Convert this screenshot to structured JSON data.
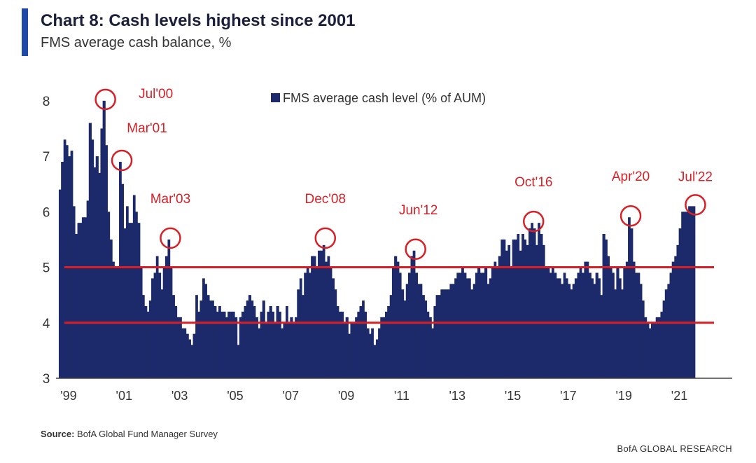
{
  "header": {
    "title": "Chart 8: Cash levels highest since 2001",
    "subtitle": "FMS average cash balance, %"
  },
  "footer": {
    "source_label": "Source:",
    "source_text": "BofA Global Fund Manager Survey",
    "brand": "BofA GLOBAL RESEARCH"
  },
  "colors": {
    "bars": "#1c2a6b",
    "reference_lines": "#d91f26",
    "annotations": "#d91f26",
    "accent": "#1f4aa8"
  },
  "chart_data": {
    "type": "bar",
    "title": "Chart 8: Cash levels highest since 2001",
    "subtitle": "FMS average cash balance, %",
    "legend": {
      "label": "FMS average cash level (% of AUM)",
      "position": "top-center"
    },
    "x_tick_labels": [
      "'99",
      "'01",
      "'03",
      "'05",
      "'07",
      "'09",
      "'11",
      "'13",
      "'15",
      "'17",
      "'19",
      "'21"
    ],
    "x_tick_years": [
      1999,
      2001,
      2003,
      2005,
      2007,
      2009,
      2011,
      2013,
      2015,
      2017,
      2019,
      2021
    ],
    "xlim": [
      1998.9,
      2022.6
    ],
    "ylim": [
      3,
      8.2
    ],
    "y_ticks": [
      3,
      4,
      5,
      6,
      7,
      8
    ],
    "reference_lines": [
      4,
      5
    ],
    "series": [
      {
        "name": "FMS average cash level (% of AUM)",
        "keypoints": [
          [
            1999.0,
            6.4
          ],
          [
            1999.08,
            6.9
          ],
          [
            1999.17,
            7.3
          ],
          [
            1999.25,
            7.2
          ],
          [
            1999.33,
            7.0
          ],
          [
            1999.42,
            7.1
          ],
          [
            1999.5,
            6.1
          ],
          [
            1999.58,
            5.6
          ],
          [
            1999.67,
            5.8
          ],
          [
            1999.75,
            5.8
          ],
          [
            1999.83,
            5.9
          ],
          [
            1999.92,
            5.9
          ],
          [
            2000.0,
            6.2
          ],
          [
            2000.08,
            7.6
          ],
          [
            2000.17,
            7.3
          ],
          [
            2000.25,
            6.8
          ],
          [
            2000.33,
            7.0
          ],
          [
            2000.42,
            6.7
          ],
          [
            2000.5,
            7.5
          ],
          [
            2000.58,
            8.0
          ],
          [
            2000.67,
            7.2
          ],
          [
            2000.75,
            6.0
          ],
          [
            2000.83,
            5.5
          ],
          [
            2000.92,
            5.1
          ],
          [
            2001.0,
            5.0
          ],
          [
            2001.08,
            5.0
          ],
          [
            2001.17,
            6.9
          ],
          [
            2001.25,
            6.5
          ],
          [
            2001.33,
            5.7
          ],
          [
            2001.42,
            6.1
          ],
          [
            2001.5,
            5.8
          ],
          [
            2001.58,
            5.8
          ],
          [
            2001.67,
            6.3
          ],
          [
            2001.75,
            6.0
          ],
          [
            2001.83,
            5.8
          ],
          [
            2001.92,
            5.0
          ],
          [
            2002.0,
            4.5
          ],
          [
            2002.08,
            4.3
          ],
          [
            2002.17,
            4.2
          ],
          [
            2002.25,
            4.4
          ],
          [
            2002.33,
            4.8
          ],
          [
            2002.42,
            4.9
          ],
          [
            2002.5,
            5.2
          ],
          [
            2002.58,
            4.9
          ],
          [
            2002.67,
            4.6
          ],
          [
            2002.75,
            5.0
          ],
          [
            2002.83,
            5.2
          ],
          [
            2002.92,
            5.5
          ],
          [
            2003.0,
            5.0
          ],
          [
            2003.08,
            4.5
          ],
          [
            2003.17,
            4.3
          ],
          [
            2003.25,
            4.1
          ],
          [
            2003.33,
            4.1
          ],
          [
            2003.42,
            3.9
          ],
          [
            2003.5,
            3.9
          ],
          [
            2003.58,
            3.8
          ],
          [
            2003.67,
            3.7
          ],
          [
            2003.75,
            3.6
          ],
          [
            2003.83,
            3.8
          ],
          [
            2003.92,
            4.5
          ],
          [
            2004.0,
            4.2
          ],
          [
            2004.08,
            4.4
          ],
          [
            2004.17,
            4.8
          ],
          [
            2004.25,
            4.7
          ],
          [
            2004.33,
            4.5
          ],
          [
            2004.42,
            4.4
          ],
          [
            2004.5,
            4.4
          ],
          [
            2004.58,
            4.3
          ],
          [
            2004.67,
            4.2
          ],
          [
            2004.75,
            4.3
          ],
          [
            2004.83,
            4.2
          ],
          [
            2004.92,
            4.2
          ],
          [
            2005.0,
            4.1
          ],
          [
            2005.08,
            4.2
          ],
          [
            2005.17,
            4.2
          ],
          [
            2005.25,
            4.2
          ],
          [
            2005.33,
            4.1
          ],
          [
            2005.42,
            3.6
          ],
          [
            2005.5,
            4.1
          ],
          [
            2005.58,
            4.2
          ],
          [
            2005.67,
            4.3
          ],
          [
            2005.75,
            4.4
          ],
          [
            2005.83,
            4.5
          ],
          [
            2005.92,
            4.4
          ],
          [
            2006.0,
            4.3
          ],
          [
            2006.08,
            4.1
          ],
          [
            2006.17,
            3.9
          ],
          [
            2006.25,
            4.2
          ],
          [
            2006.33,
            4.4
          ],
          [
            2006.42,
            4.0
          ],
          [
            2006.5,
            4.2
          ],
          [
            2006.58,
            4.3
          ],
          [
            2006.67,
            4.2
          ],
          [
            2006.75,
            4.0
          ],
          [
            2006.83,
            4.3
          ],
          [
            2006.92,
            4.2
          ],
          [
            2007.0,
            3.9
          ],
          [
            2007.08,
            4.0
          ],
          [
            2007.17,
            4.3
          ],
          [
            2007.25,
            4.0
          ],
          [
            2007.33,
            4.1
          ],
          [
            2007.42,
            4.0
          ],
          [
            2007.5,
            4.1
          ],
          [
            2007.58,
            4.6
          ],
          [
            2007.67,
            4.8
          ],
          [
            2007.75,
            4.5
          ],
          [
            2007.83,
            4.9
          ],
          [
            2007.92,
            5.0
          ],
          [
            2008.0,
            4.9
          ],
          [
            2008.08,
            5.2
          ],
          [
            2008.17,
            5.2
          ],
          [
            2008.25,
            5.0
          ],
          [
            2008.33,
            5.3
          ],
          [
            2008.42,
            5.3
          ],
          [
            2008.5,
            5.4
          ],
          [
            2008.58,
            5.1
          ],
          [
            2008.67,
            5.2
          ],
          [
            2008.75,
            5.0
          ],
          [
            2008.83,
            4.8
          ],
          [
            2008.92,
            4.6
          ],
          [
            2009.0,
            4.3
          ],
          [
            2009.08,
            4.2
          ],
          [
            2009.17,
            4.2
          ],
          [
            2009.25,
            4.0
          ],
          [
            2009.33,
            4.1
          ],
          [
            2009.42,
            3.8
          ],
          [
            2009.5,
            4.0
          ],
          [
            2009.58,
            4.0
          ],
          [
            2009.67,
            4.1
          ],
          [
            2009.75,
            4.2
          ],
          [
            2009.83,
            4.3
          ],
          [
            2009.92,
            4.4
          ],
          [
            2010.0,
            4.2
          ],
          [
            2010.08,
            3.9
          ],
          [
            2010.17,
            3.8
          ],
          [
            2010.25,
            3.9
          ],
          [
            2010.33,
            3.6
          ],
          [
            2010.42,
            3.7
          ],
          [
            2010.5,
            3.9
          ],
          [
            2010.58,
            4.1
          ],
          [
            2010.67,
            4.1
          ],
          [
            2010.75,
            4.2
          ],
          [
            2010.83,
            4.3
          ],
          [
            2010.92,
            4.5
          ],
          [
            2011.0,
            5.0
          ],
          [
            2011.08,
            5.2
          ],
          [
            2011.17,
            5.1
          ],
          [
            2011.25,
            4.9
          ],
          [
            2011.33,
            4.6
          ],
          [
            2011.42,
            4.4
          ],
          [
            2011.5,
            4.7
          ],
          [
            2011.58,
            4.9
          ],
          [
            2011.67,
            5.2
          ],
          [
            2011.75,
            5.3
          ],
          [
            2011.83,
            4.9
          ],
          [
            2011.92,
            4.7
          ],
          [
            2012.0,
            4.7
          ],
          [
            2012.08,
            4.5
          ],
          [
            2012.17,
            4.4
          ],
          [
            2012.25,
            4.2
          ],
          [
            2012.33,
            4.1
          ],
          [
            2012.42,
            3.9
          ],
          [
            2012.5,
            4.3
          ],
          [
            2012.58,
            4.5
          ],
          [
            2012.67,
            4.5
          ],
          [
            2012.75,
            4.6
          ],
          [
            2012.83,
            4.6
          ],
          [
            2012.92,
            4.6
          ],
          [
            2013.0,
            4.6
          ],
          [
            2013.08,
            4.7
          ],
          [
            2013.17,
            4.7
          ],
          [
            2013.25,
            4.8
          ],
          [
            2013.33,
            4.9
          ],
          [
            2013.42,
            4.9
          ],
          [
            2013.5,
            5.0
          ],
          [
            2013.58,
            4.9
          ],
          [
            2013.67,
            4.8
          ],
          [
            2013.75,
            4.8
          ],
          [
            2013.83,
            4.6
          ],
          [
            2013.92,
            4.7
          ],
          [
            2014.0,
            4.9
          ],
          [
            2014.08,
            5.0
          ],
          [
            2014.17,
            4.9
          ],
          [
            2014.25,
            4.9
          ],
          [
            2014.33,
            5.0
          ],
          [
            2014.42,
            4.7
          ],
          [
            2014.5,
            4.8
          ],
          [
            2014.58,
            5.0
          ],
          [
            2014.67,
            5.1
          ],
          [
            2014.75,
            5.0
          ],
          [
            2014.83,
            5.2
          ],
          [
            2014.92,
            5.5
          ],
          [
            2015.0,
            5.5
          ],
          [
            2015.08,
            5.3
          ],
          [
            2015.17,
            5.4
          ],
          [
            2015.25,
            5.0
          ],
          [
            2015.33,
            5.5
          ],
          [
            2015.42,
            5.5
          ],
          [
            2015.5,
            5.6
          ],
          [
            2015.58,
            5.3
          ],
          [
            2015.67,
            5.6
          ],
          [
            2015.75,
            5.5
          ],
          [
            2015.83,
            5.4
          ],
          [
            2015.92,
            5.7
          ],
          [
            2016.0,
            5.8
          ],
          [
            2016.08,
            5.7
          ],
          [
            2016.17,
            5.4
          ],
          [
            2016.25,
            5.8
          ],
          [
            2016.33,
            5.6
          ],
          [
            2016.42,
            5.4
          ],
          [
            2016.5,
            5.0
          ],
          [
            2016.58,
            5.0
          ],
          [
            2016.67,
            4.9
          ],
          [
            2016.75,
            5.0
          ],
          [
            2016.83,
            4.9
          ],
          [
            2016.92,
            4.8
          ],
          [
            2017.0,
            4.8
          ],
          [
            2017.08,
            4.7
          ],
          [
            2017.17,
            4.9
          ],
          [
            2017.25,
            4.8
          ],
          [
            2017.33,
            4.7
          ],
          [
            2017.42,
            4.6
          ],
          [
            2017.5,
            4.7
          ],
          [
            2017.58,
            4.8
          ],
          [
            2017.67,
            4.9
          ],
          [
            2017.75,
            5.0
          ],
          [
            2017.83,
            4.9
          ],
          [
            2017.92,
            5.1
          ],
          [
            2018.0,
            5.1
          ],
          [
            2018.08,
            4.9
          ],
          [
            2018.17,
            4.8
          ],
          [
            2018.25,
            4.7
          ],
          [
            2018.33,
            4.9
          ],
          [
            2018.42,
            4.8
          ],
          [
            2018.5,
            4.5
          ],
          [
            2018.58,
            5.6
          ],
          [
            2018.67,
            5.5
          ],
          [
            2018.75,
            5.2
          ],
          [
            2018.83,
            5.0
          ],
          [
            2018.92,
            4.9
          ],
          [
            2019.0,
            4.6
          ],
          [
            2019.08,
            5.0
          ],
          [
            2019.17,
            4.8
          ],
          [
            2019.25,
            4.6
          ],
          [
            2019.33,
            5.0
          ],
          [
            2019.42,
            5.1
          ],
          [
            2019.5,
            5.9
          ],
          [
            2019.58,
            5.7
          ],
          [
            2019.67,
            5.1
          ],
          [
            2019.75,
            4.9
          ],
          [
            2019.83,
            4.9
          ],
          [
            2019.92,
            4.7
          ],
          [
            2020.0,
            4.4
          ],
          [
            2020.08,
            4.1
          ],
          [
            2020.17,
            4.0
          ],
          [
            2020.25,
            3.9
          ],
          [
            2020.33,
            4.0
          ],
          [
            2020.42,
            4.0
          ],
          [
            2020.5,
            4.1
          ],
          [
            2020.58,
            4.1
          ],
          [
            2020.67,
            4.2
          ],
          [
            2020.75,
            4.4
          ],
          [
            2020.83,
            4.6
          ],
          [
            2020.92,
            4.7
          ],
          [
            2021.0,
            4.9
          ],
          [
            2021.08,
            5.1
          ],
          [
            2021.17,
            5.2
          ],
          [
            2021.25,
            5.4
          ],
          [
            2021.33,
            5.7
          ],
          [
            2021.42,
            6.0
          ],
          [
            2021.5,
            6.0
          ],
          [
            2021.58,
            6.0
          ],
          [
            2021.67,
            6.1
          ],
          [
            2021.75,
            6.1
          ],
          [
            2021.83,
            6.1
          ]
        ]
      }
    ],
    "annotations": [
      {
        "label": "Jul'00",
        "x": 2000.58,
        "y": 8.0
      },
      {
        "label": "Mar'01",
        "x": 2001.17,
        "y": 6.9
      },
      {
        "label": "Mar'03",
        "x": 2002.92,
        "y": 5.5
      },
      {
        "label": "Dec'08",
        "x": 2008.5,
        "y": 5.5
      },
      {
        "label": "Jun'12",
        "x": 2011.75,
        "y": 5.3
      },
      {
        "label": "Oct'16",
        "x": 2016.0,
        "y": 5.8
      },
      {
        "label": "Apr'20",
        "x": 2019.5,
        "y": 5.9
      },
      {
        "label": "Jul'22",
        "x": 2021.83,
        "y": 6.1
      }
    ]
  }
}
